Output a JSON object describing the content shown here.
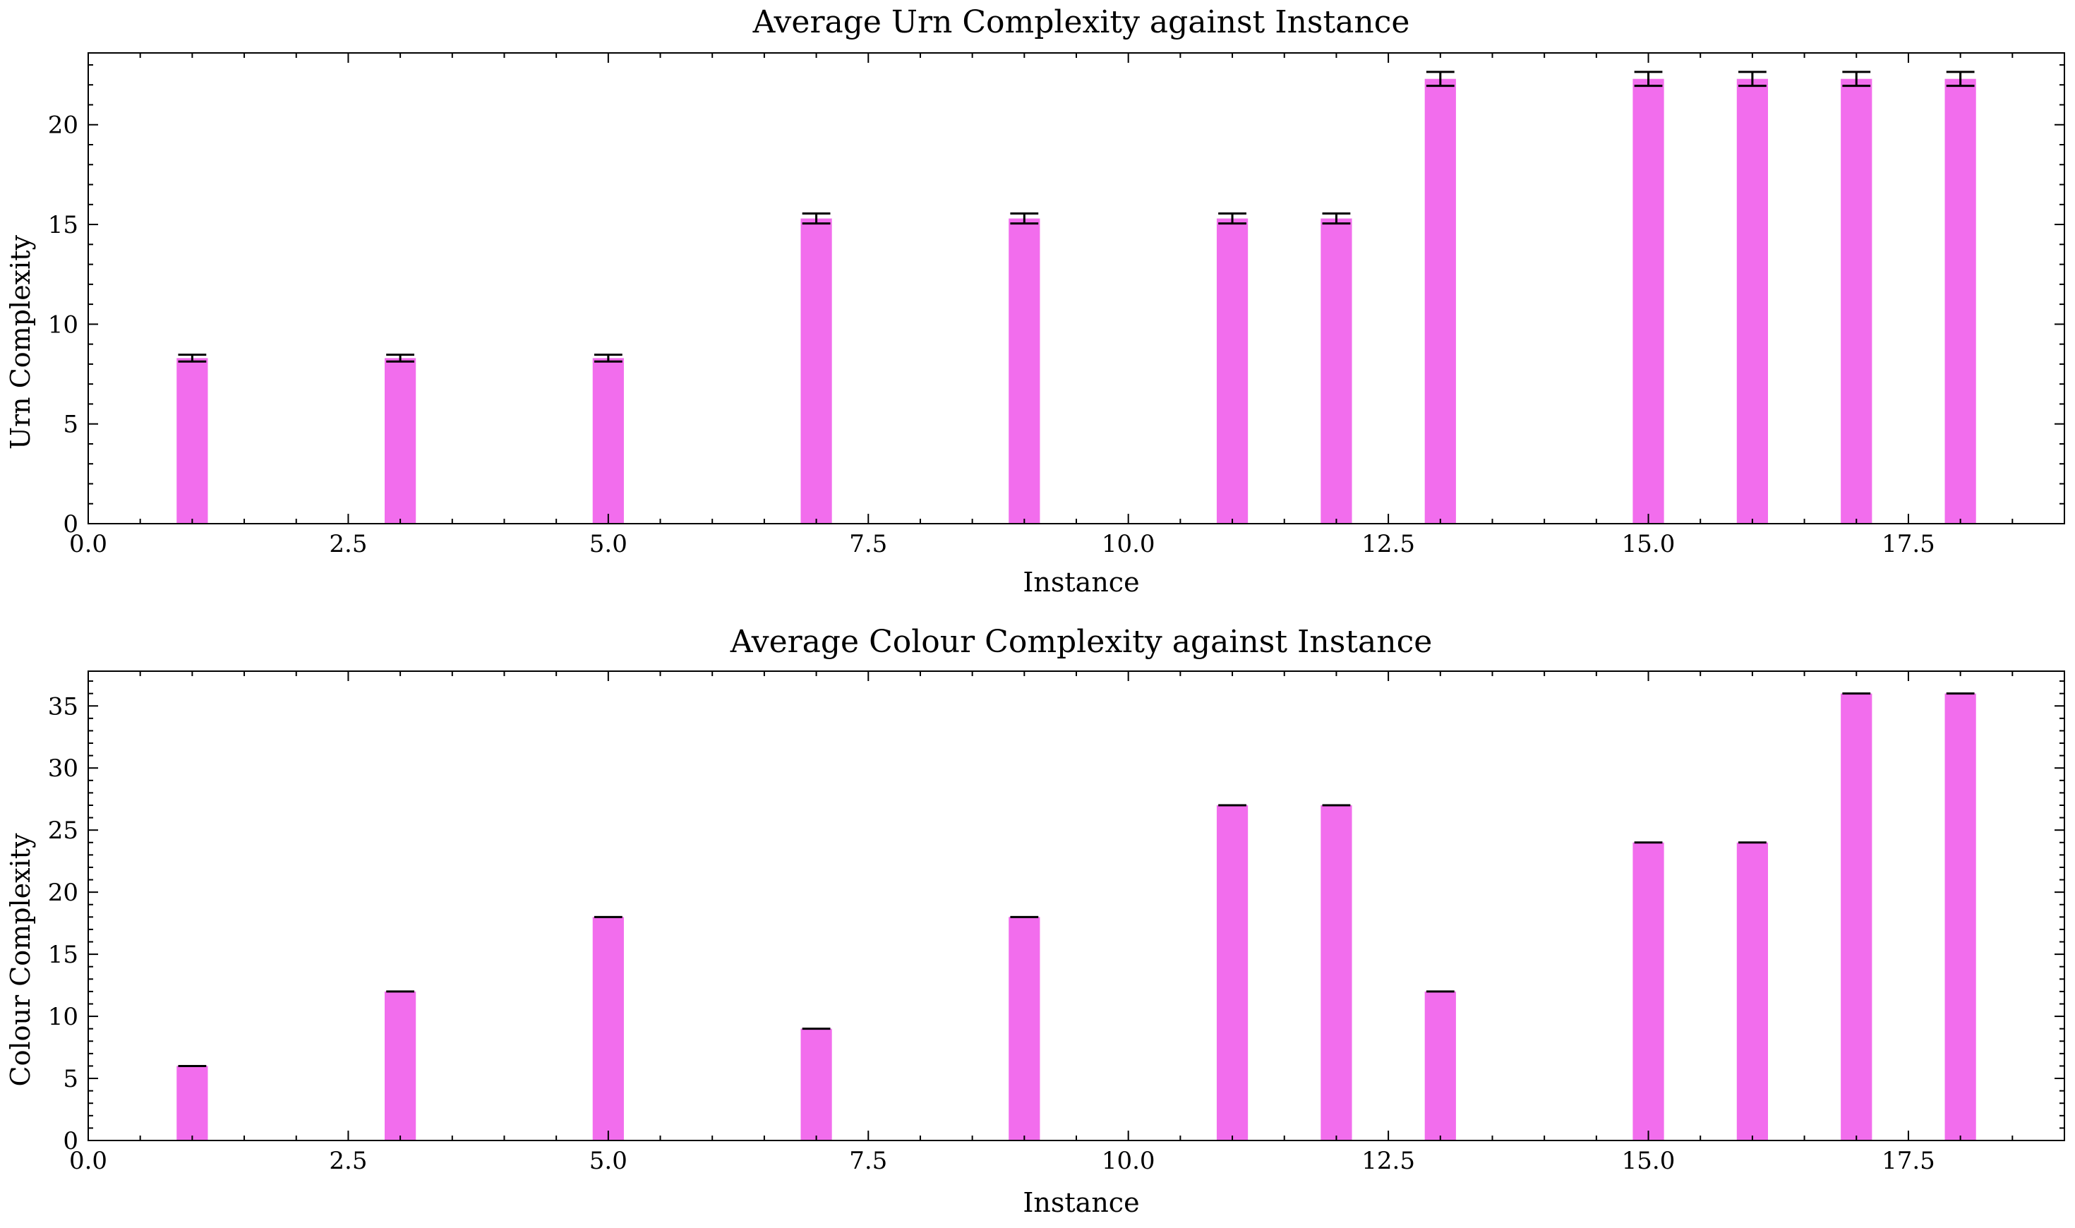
{
  "chart_data": [
    {
      "type": "bar",
      "title": "Average Urn Complexity against Instance",
      "xlabel": "Instance",
      "ylabel": "Urn Complexity",
      "xlim": [
        0,
        19
      ],
      "ylim": [
        0,
        23.6
      ],
      "xticks": [
        "0.0",
        "2.5",
        "5.0",
        "7.5",
        "10.0",
        "12.5",
        "15.0",
        "17.5"
      ],
      "yticks": [
        "0",
        "5",
        "10",
        "15",
        "20"
      ],
      "bar_color": "#f26ded",
      "x": [
        1,
        3,
        5,
        7,
        9,
        11,
        12,
        13,
        15,
        16,
        17,
        18
      ],
      "values": [
        8.3,
        8.3,
        8.3,
        15.3,
        15.3,
        15.3,
        15.3,
        22.3,
        22.3,
        22.3,
        22.3,
        22.3
      ],
      "errors": [
        0.17,
        0.17,
        0.17,
        0.25,
        0.25,
        0.25,
        0.25,
        0.35,
        0.35,
        0.35,
        0.35,
        0.35
      ],
      "grid": false
    },
    {
      "type": "bar",
      "title": "Average Colour Complexity against Instance",
      "xlabel": "Instance",
      "ylabel": "Colour Complexity",
      "xlim": [
        0,
        19
      ],
      "ylim": [
        0,
        37.8
      ],
      "xticks": [
        "0.0",
        "2.5",
        "5.0",
        "7.5",
        "10.0",
        "12.5",
        "15.0",
        "17.5"
      ],
      "yticks": [
        "0",
        "5",
        "10",
        "15",
        "20",
        "25",
        "30",
        "35"
      ],
      "bar_color": "#f26ded",
      "x": [
        1,
        3,
        5,
        7,
        9,
        11,
        12,
        13,
        15,
        16,
        17,
        18
      ],
      "values": [
        6,
        12,
        18,
        9,
        18,
        27,
        27,
        12,
        24,
        24,
        36,
        36
      ],
      "errors": [
        0,
        0,
        0,
        0,
        0,
        0,
        0,
        0,
        0,
        0,
        0,
        0
      ],
      "grid": false
    }
  ]
}
